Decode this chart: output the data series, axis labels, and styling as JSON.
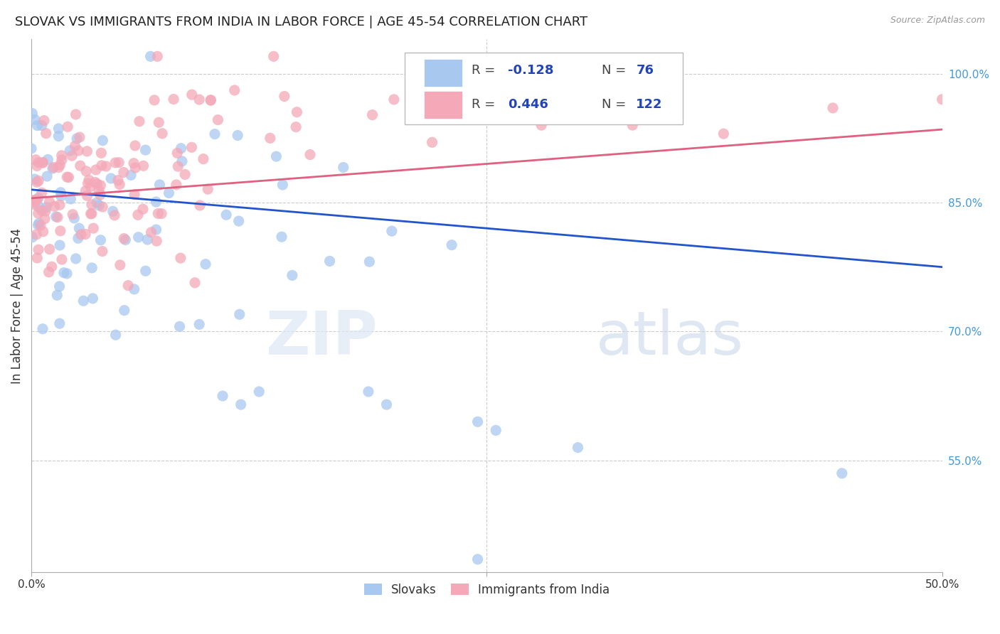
{
  "title": "SLOVAK VS IMMIGRANTS FROM INDIA IN LABOR FORCE | AGE 45-54 CORRELATION CHART",
  "source": "Source: ZipAtlas.com",
  "ylabel": "In Labor Force | Age 45-54",
  "xlim": [
    0.0,
    0.5
  ],
  "ylim": [
    0.42,
    1.04
  ],
  "ytick_labels_right": [
    "100.0%",
    "85.0%",
    "70.0%",
    "55.0%"
  ],
  "ytick_vals_right": [
    1.0,
    0.85,
    0.7,
    0.55
  ],
  "blue_color": "#a8c8f0",
  "pink_color": "#f4a8b8",
  "blue_line_color": "#2255cc",
  "pink_line_color": "#e06080",
  "R_blue": -0.128,
  "N_blue": 76,
  "R_pink": 0.446,
  "N_pink": 122,
  "watermark_zip": "ZIP",
  "watermark_atlas": "atlas",
  "background_color": "#ffffff",
  "grid_color": "#cccccc",
  "title_fontsize": 13,
  "axis_label_fontsize": 12,
  "tick_fontsize": 11,
  "legend_fontsize": 13
}
